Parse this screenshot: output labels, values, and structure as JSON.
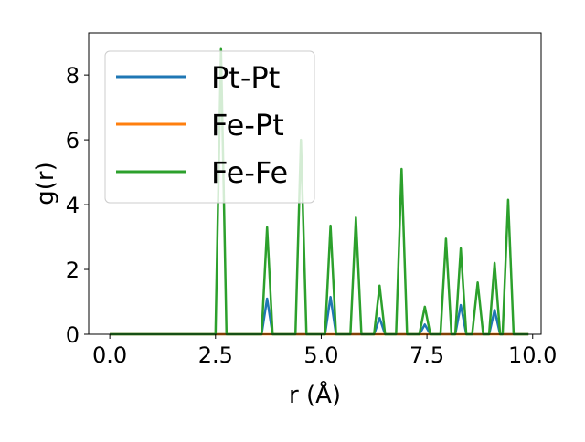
{
  "chart_data": {
    "type": "line",
    "xlabel": "r (Å)",
    "ylabel": "g(r)",
    "xlim": [
      -0.5,
      10.2
    ],
    "ylim": [
      0,
      9.3
    ],
    "xticks": [
      0.0,
      2.5,
      5.0,
      7.5,
      10.0
    ],
    "xtick_labels": [
      "0.0",
      "2.5",
      "5.0",
      "7.5",
      "10.0"
    ],
    "yticks": [
      0,
      2,
      4,
      6,
      8
    ],
    "ytick_labels": [
      "0",
      "2",
      "4",
      "6",
      "8"
    ],
    "grid": false,
    "legend_position": "top-left",
    "x_range": [
      0.0,
      9.9
    ],
    "peak_half_width": 0.13,
    "series": [
      {
        "name": "Pt-Pt",
        "color": "#1f77b4",
        "peaks": [
          [
            3.72,
            1.1
          ],
          [
            5.22,
            1.15
          ],
          [
            6.38,
            0.5
          ],
          [
            7.45,
            0.3
          ],
          [
            8.3,
            0.9
          ],
          [
            9.1,
            0.75
          ]
        ]
      },
      {
        "name": "Fe-Pt",
        "color": "#ff7f0e",
        "peaks": []
      },
      {
        "name": "Fe-Fe",
        "color": "#2ca02c",
        "peaks": [
          [
            2.63,
            8.8
          ],
          [
            3.72,
            3.3
          ],
          [
            4.52,
            6.0
          ],
          [
            5.22,
            3.35
          ],
          [
            5.82,
            3.6
          ],
          [
            6.38,
            1.5
          ],
          [
            6.9,
            5.1
          ],
          [
            7.45,
            0.85
          ],
          [
            7.95,
            2.95
          ],
          [
            8.3,
            2.65
          ],
          [
            8.7,
            1.6
          ],
          [
            9.1,
            2.2
          ],
          [
            9.42,
            4.15
          ]
        ]
      }
    ]
  }
}
